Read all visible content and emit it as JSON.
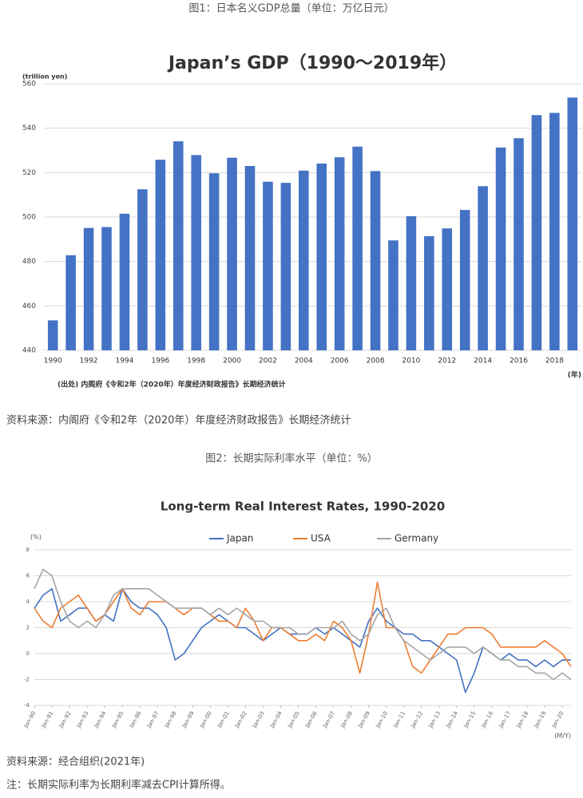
{
  "figure1_caption": "图1：日本名义GDP总量（单位：万亿日元）",
  "figure1_source": "资料来源：内阁府《令和2年（2020年）年度经济财政报告》长期经济统计",
  "figure2_caption": "图2：长期实际利率水平（单位：%）",
  "figure2_source": "资料来源：经合组织(2021年)",
  "note": "注：长期实际利率为长期利率减去CPI计算所得。",
  "chart_data": [
    {
      "type": "bar",
      "title": "Japan’s GDP（1990～2019年）",
      "y_label": "(trillion yen)",
      "x_unit": "(年)",
      "source_note": "(出处) 内阁府《令和2年（2020年）年度经济财政报告》长期经济统计",
      "categories": [
        "1990",
        null,
        "1992",
        null,
        "1994",
        null,
        "1996",
        null,
        "1998",
        null,
        "2000",
        null,
        "2002",
        null,
        "2004",
        null,
        "2006",
        null,
        "2008",
        null,
        "2010",
        null,
        "2012",
        null,
        "2014",
        null,
        "2016",
        null,
        "2018",
        null
      ],
      "values": [
        453.5,
        482.8,
        495.1,
        495.5,
        501.5,
        512.5,
        525.8,
        534.1,
        527.9,
        519.7,
        526.7,
        523.0,
        515.9,
        515.4,
        520.9,
        524.1,
        526.9,
        531.7,
        520.7,
        489.5,
        500.4,
        491.4,
        494.9,
        503.2,
        513.9,
        531.3,
        535.5,
        545.9,
        546.9,
        553.8
      ],
      "color": "#4472c4",
      "ylim": [
        440,
        560
      ],
      "yticks": [
        440,
        460,
        480,
        500,
        520,
        540,
        560
      ],
      "grid": true
    },
    {
      "type": "line",
      "title": "Long-term Real Interest Rates, 1990-2020",
      "y_label": "(%)",
      "x_label": "(M/Y)",
      "legend": "top",
      "grid": true,
      "x": [
        1990,
        1990.5,
        1991,
        1991.5,
        1992,
        1992.5,
        1993,
        1993.5,
        1994,
        1994.5,
        1995,
        1995.5,
        1996,
        1996.5,
        1997,
        1997.5,
        1998,
        1998.5,
        1999,
        1999.5,
        2000,
        2000.5,
        2001,
        2001.5,
        2002,
        2002.5,
        2003,
        2003.5,
        2004,
        2004.5,
        2005,
        2005.5,
        2006,
        2006.5,
        2007,
        2007.5,
        2008,
        2008.5,
        2009,
        2009.5,
        2010,
        2010.5,
        2011,
        2011.5,
        2012,
        2012.5,
        2013,
        2013.5,
        2014,
        2014.5,
        2015,
        2015.5,
        2016,
        2016.5,
        2017,
        2017.5,
        2018,
        2018.5,
        2019,
        2019.5,
        2020,
        2020.5
      ],
      "xlim": [
        1990,
        2020.5
      ],
      "xticks": [
        {
          "value": 1990,
          "label": "Jan-90"
        },
        {
          "value": 1991,
          "label": "Jan-91"
        },
        {
          "value": 1992,
          "label": "Jan-92"
        },
        {
          "value": 1993,
          "label": "Jan-93"
        },
        {
          "value": 1994,
          "label": "Jan-94"
        },
        {
          "value": 1995,
          "label": "Jan-95"
        },
        {
          "value": 1996,
          "label": "Jan-96"
        },
        {
          "value": 1997,
          "label": "Jan-97"
        },
        {
          "value": 1998,
          "label": "Jan-98"
        },
        {
          "value": 1999,
          "label": "Jan-99"
        },
        {
          "value": 2000,
          "label": "Jan-00"
        },
        {
          "value": 2001,
          "label": "Jan-01"
        },
        {
          "value": 2002,
          "label": "Jan-02"
        },
        {
          "value": 2003,
          "label": "Jan-03"
        },
        {
          "value": 2004,
          "label": "Jan-04"
        },
        {
          "value": 2005,
          "label": "Jan-05"
        },
        {
          "value": 2006,
          "label": "Jan-06"
        },
        {
          "value": 2007,
          "label": "Jan-07"
        },
        {
          "value": 2008,
          "label": "Jan-08"
        },
        {
          "value": 2009,
          "label": "Jan-09"
        },
        {
          "value": 2010,
          "label": "Jan-10"
        },
        {
          "value": 2011,
          "label": "Jan-11"
        },
        {
          "value": 2012,
          "label": "Jan-12"
        },
        {
          "value": 2013,
          "label": "Jan-13"
        },
        {
          "value": 2014,
          "label": "Jan-14"
        },
        {
          "value": 2015,
          "label": "Jan-15"
        },
        {
          "value": 2016,
          "label": "Jan-16"
        },
        {
          "value": 2017,
          "label": "Jan-17"
        },
        {
          "value": 2018,
          "label": "Jan-18"
        },
        {
          "value": 2019,
          "label": "Jan-19"
        },
        {
          "value": 2020,
          "label": "Jan-20"
        }
      ],
      "ylim": [
        -4,
        8
      ],
      "yticks": [
        -4,
        -2,
        0,
        2,
        4,
        6,
        8
      ],
      "series": [
        {
          "name": "Japan",
          "color": "#4472c4",
          "values": [
            3.5,
            4.5,
            5,
            2.5,
            3,
            3.5,
            3.5,
            2.5,
            3,
            2.5,
            5,
            4,
            3.5,
            3.5,
            3,
            2,
            -0.5,
            0,
            1,
            2,
            2.5,
            3,
            2.5,
            2,
            2,
            1.5,
            1,
            1.5,
            2,
            1.5,
            1.5,
            1.5,
            2,
            1.5,
            2,
            1.5,
            1,
            0.5,
            2.5,
            3.5,
            2.5,
            2,
            1.5,
            1.5,
            1,
            1,
            0.5,
            0,
            -0.5,
            -3,
            -1.5,
            0.5,
            0,
            -0.5,
            0,
            -0.5,
            -0.5,
            -1,
            -0.5,
            -1,
            -0.5,
            -0.5
          ]
        },
        {
          "name": "USA",
          "color": "#ed7d31",
          "values": [
            3.5,
            2.5,
            2,
            3.5,
            4,
            4.5,
            3.5,
            2.5,
            3,
            4,
            5,
            3.5,
            3,
            4,
            4,
            4,
            3.5,
            3,
            3.5,
            3.5,
            3,
            2.5,
            2.5,
            2,
            3.5,
            2.5,
            1,
            2,
            2,
            1.5,
            1,
            1,
            1.5,
            1,
            2.5,
            2,
            1,
            -1.5,
            1.5,
            5.5,
            2,
            2,
            1,
            -1,
            -1.5,
            -0.5,
            0.5,
            1.5,
            1.5,
            2,
            2,
            2,
            1.5,
            0.5,
            0.5,
            0.5,
            0.5,
            0.5,
            1,
            0.5,
            0,
            -1
          ]
        },
        {
          "name": "Germany",
          "color": "#a5a5a5",
          "values": [
            5,
            6.5,
            6,
            4,
            2.5,
            2,
            2.5,
            2,
            3,
            4.5,
            5,
            5,
            5,
            5,
            4.5,
            4,
            3.5,
            3.5,
            3.5,
            3.5,
            3,
            3.5,
            3,
            3.5,
            3,
            2.5,
            2.5,
            2,
            2,
            2,
            1.5,
            1.5,
            2,
            2,
            2,
            2.5,
            1.5,
            1,
            1.5,
            3,
            3.5,
            2,
            1,
            0.5,
            0,
            -0.5,
            0,
            0.5,
            0.5,
            0.5,
            0,
            0.5,
            0,
            -0.5,
            -0.5,
            -1,
            -1,
            -1.5,
            -1.5,
            -2,
            -1.5,
            -2
          ]
        }
      ]
    }
  ]
}
